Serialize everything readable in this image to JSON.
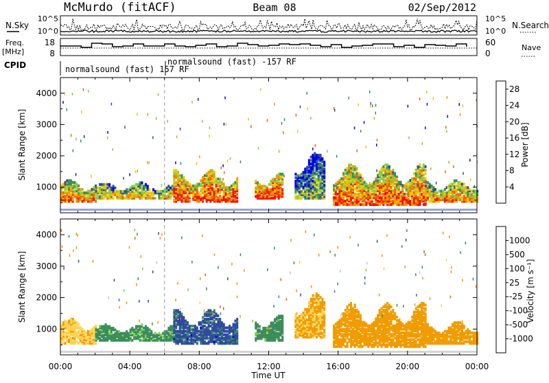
{
  "header": {
    "station": "McMurdo (fitACF)",
    "beam": "Beam 08",
    "date": "02/Sep/2012"
  },
  "strip_labels": {
    "nsky": "N.Sky",
    "nsearch": "N.Search",
    "freq": "Freq.",
    "freq_unit": "[MHz]",
    "nave": "Nave",
    "cpid": "CPID",
    "nsky_ticks": [
      "10^5",
      "10^0"
    ],
    "nsearch_ticks": [
      "10^5",
      "10^0"
    ],
    "freq_ticks": [
      "18",
      "8"
    ],
    "nave_ticks": [
      "60",
      "0"
    ]
  },
  "cpid_annotations": [
    {
      "text": "normalsound (fast) 157 RF",
      "start_hour": 0
    },
    {
      "text": "normalsound (fast) -157 RF",
      "start_hour": 6
    }
  ],
  "colors": {
    "power": [
      "#0000ee",
      "#2f4ba0",
      "#3c8c5c",
      "#7bd24a",
      "#f0c800",
      "#f09c00",
      "#f06400",
      "#e81a00",
      "#ff0000"
    ],
    "velocity": [
      "#ee0000",
      "#f06400",
      "#f09c00",
      "#ffd250",
      "#c8c8c8",
      "#7bd24a",
      "#3c8c5c",
      "#2f4ba0",
      "#0000ee"
    ],
    "marker_line": "#999999"
  },
  "chart_data": [
    {
      "type": "heatmap",
      "title": "",
      "xlabel": "Time UT",
      "ylabel": "Slant Range [km]",
      "xlim": [
        0,
        24
      ],
      "ylim": [
        180,
        4500
      ],
      "x_ticks": [
        "00:00",
        "04:00",
        "08:00",
        "12:00",
        "16:00",
        "20:00",
        "00:00"
      ],
      "y_ticks": [
        "1000",
        "2000",
        "3000",
        "4000"
      ],
      "colorbar": {
        "label": "Power [dB]",
        "ticks": [
          "4",
          "8",
          "12",
          "16",
          "20",
          "24",
          "28"
        ],
        "range": [
          0,
          30
        ]
      },
      "scatter_bands": [
        {
          "t_start": 0.0,
          "t_end": 2.0,
          "r_low": 500,
          "r_high": 1200,
          "mean": 22
        },
        {
          "t_start": 2.0,
          "t_end": 6.5,
          "r_low": 600,
          "r_high": 1100,
          "mean": 18
        },
        {
          "t_start": 6.5,
          "t_end": 10.2,
          "r_low": 500,
          "r_high": 1500,
          "mean": 25
        },
        {
          "t_start": 11.2,
          "t_end": 12.8,
          "r_low": 600,
          "r_high": 1400,
          "mean": 26
        },
        {
          "t_start": 13.5,
          "t_end": 15.2,
          "r_low": 600,
          "r_high": 2100,
          "mean": 12
        },
        {
          "t_start": 15.7,
          "t_end": 21.0,
          "r_low": 400,
          "r_high": 1700,
          "mean": 24
        },
        {
          "t_start": 21.0,
          "t_end": 24.0,
          "r_low": 500,
          "r_high": 1200,
          "mean": 21
        }
      ]
    },
    {
      "type": "heatmap",
      "title": "",
      "xlabel": "Time UT",
      "ylabel": "Slant Range [km]",
      "xlim": [
        0,
        24
      ],
      "ylim": [
        180,
        4500
      ],
      "x_ticks": [
        "00:00",
        "04:00",
        "08:00",
        "12:00",
        "16:00",
        "20:00",
        "00:00"
      ],
      "y_ticks": [
        "1000",
        "2000",
        "3000",
        "4000"
      ],
      "colorbar": {
        "label": "Velocity [m s⁻¹]",
        "ticks": [
          "1000",
          "500",
          "100",
          "25",
          "-25",
          "-100",
          "-500",
          "-1000"
        ]
      },
      "scatter_bands": [
        {
          "t_start": 0.0,
          "t_end": 2.0,
          "r_low": 500,
          "r_high": 1300,
          "mean": -80
        },
        {
          "t_start": 2.0,
          "t_end": 6.5,
          "r_low": 600,
          "r_high": 1100,
          "mean": 150
        },
        {
          "t_start": 6.5,
          "t_end": 10.2,
          "r_low": 500,
          "r_high": 1600,
          "mean": 700
        },
        {
          "t_start": 11.2,
          "t_end": 12.8,
          "r_low": 600,
          "r_high": 1400,
          "mean": 150
        },
        {
          "t_start": 13.5,
          "t_end": 15.2,
          "r_low": 700,
          "r_high": 2100,
          "mean": -120
        },
        {
          "t_start": 15.7,
          "t_end": 21.0,
          "r_low": 400,
          "r_high": 1800,
          "mean": -300
        },
        {
          "t_start": 21.0,
          "t_end": 24.0,
          "r_low": 500,
          "r_high": 1200,
          "mean": -250
        }
      ]
    }
  ],
  "time_axis": {
    "label": "Time UT"
  }
}
